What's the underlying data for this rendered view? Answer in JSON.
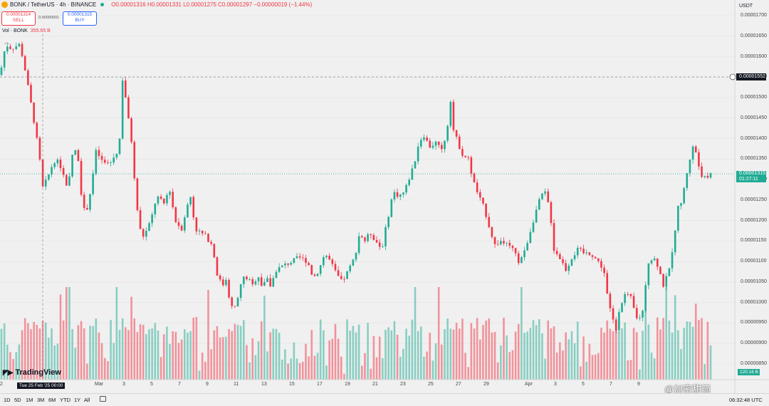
{
  "header": {
    "symbol": "BONK / TetherUS · 4h · BINANCE",
    "ohlc": "O0.00001316 H0.00001331 L0.00001275 C0.00001297 −0.00000019 (−1.44%)"
  },
  "trade": {
    "sell_price": "0.00001314",
    "sell_label": "SELL",
    "spread": "0.00000001",
    "buy_price": "0.00001315",
    "buy_label": "BUY"
  },
  "volume_legend": {
    "label": "Vol · BONK",
    "value": "355.65 B"
  },
  "axis": {
    "currency": "USDT",
    "price_line_value": "0.00001552",
    "current_price": "0.00001315",
    "countdown": "01:27:11",
    "volume_tag": "120.16 B",
    "cursor_label": "Tue 25 Feb '25   00:00"
  },
  "bottom": {
    "ranges": [
      "1D",
      "5D",
      "1M",
      "3M",
      "6M",
      "YTD",
      "1Y",
      "All"
    ],
    "clock": "06:32:48 UTC"
  },
  "branding": {
    "logo_text": "TradingView",
    "watermark": "@加密甜筒"
  },
  "colors": {
    "up": "#22ab94",
    "down": "#f23645",
    "background": "#f0f0f0"
  },
  "chart_data": {
    "type": "candlestick",
    "timeframe": "4h",
    "y_ticks": [
      "0.00001700",
      "0.00001650",
      "0.00001600",
      "0.00001550",
      "0.00001500",
      "0.00001450",
      "0.00001400",
      "0.00001350",
      "0.00001300",
      "0.00001250",
      "0.00001200",
      "0.00001150",
      "0.00001100",
      "0.00001050",
      "0.00001000",
      "0.00000950",
      "0.00000900",
      "0.00000850"
    ],
    "x_ticks": [
      "2",
      "Mar",
      "3",
      "5",
      "7",
      "9",
      "11",
      "13",
      "15",
      "17",
      "19",
      "21",
      "23",
      "25",
      "27",
      "29",
      "Apr",
      "3",
      "5",
      "7",
      "9"
    ],
    "ylim": [
      8.4e-06,
      1.72e-05
    ],
    "price_path": [
      [
        0,
        1.555e-05
      ],
      [
        8,
        1.63e-05
      ],
      [
        16,
        1.62e-05
      ],
      [
        28,
        1.63e-05
      ],
      [
        34,
        1.58e-05
      ],
      [
        40,
        1.52e-05
      ],
      [
        48,
        1.44e-05
      ],
      [
        55,
        1.36e-05
      ],
      [
        60,
        1.28e-05
      ],
      [
        66,
        1.3e-05
      ],
      [
        72,
        1.33e-05
      ],
      [
        78,
        1.35e-05
      ],
      [
        86,
        1.33e-05
      ],
      [
        95,
        1.27e-05
      ],
      [
        103,
        1.38e-05
      ],
      [
        110,
        1.35e-05
      ],
      [
        116,
        1.23e-05
      ],
      [
        121,
        1.22e-05
      ],
      [
        128,
        1.28e-05
      ],
      [
        135,
        1.37e-05
      ],
      [
        145,
        1.34e-05
      ],
      [
        155,
        1.34e-05
      ],
      [
        165,
        1.37e-05
      ],
      [
        168,
        1.4e-05
      ],
      [
        171,
        1.555e-05
      ],
      [
        175,
        1.52e-05
      ],
      [
        180,
        1.45e-05
      ],
      [
        185,
        1.39e-05
      ],
      [
        190,
        1.27e-05
      ],
      [
        196,
        1.18e-05
      ],
      [
        202,
        1.16e-05
      ],
      [
        212,
        1.2e-05
      ],
      [
        220,
        1.26e-05
      ],
      [
        230,
        1.24e-05
      ],
      [
        238,
        1.28e-05
      ],
      [
        246,
        1.2e-05
      ],
      [
        255,
        1.18e-05
      ],
      [
        262,
        1.23e-05
      ],
      [
        268,
        1.26e-05
      ],
      [
        274,
        1.18e-05
      ],
      [
        282,
        1.17e-05
      ],
      [
        290,
        1.16e-05
      ],
      [
        298,
        1.14e-05
      ],
      [
        305,
        1.07e-05
      ],
      [
        312,
        1.04e-05
      ],
      [
        318,
        1.06e-05
      ],
      [
        323,
        1e-05
      ],
      [
        328,
        9.8e-06
      ],
      [
        333,
        1e-05
      ],
      [
        340,
        1.06e-05
      ],
      [
        348,
        1.06e-05
      ],
      [
        355,
        1.04e-05
      ],
      [
        362,
        1.07e-05
      ],
      [
        368,
        1.04e-05
      ],
      [
        374,
        1.06e-05
      ],
      [
        380,
        1.04e-05
      ],
      [
        388,
        1.08e-05
      ],
      [
        398,
        1.09e-05
      ],
      [
        410,
        1.1e-05
      ],
      [
        420,
        1.11e-05
      ],
      [
        432,
        1.1e-05
      ],
      [
        440,
        1.06e-05
      ],
      [
        448,
        1.08e-05
      ],
      [
        456,
        1.12e-05
      ],
      [
        464,
        1.1e-05
      ],
      [
        472,
        1.07e-05
      ],
      [
        480,
        1.05e-05
      ],
      [
        490,
        1.08e-05
      ],
      [
        498,
        1.11e-05
      ],
      [
        505,
        1.17e-05
      ],
      [
        512,
        1.15e-05
      ],
      [
        520,
        1.17e-05
      ],
      [
        528,
        1.15e-05
      ],
      [
        536,
        1.13e-05
      ],
      [
        544,
        1.2e-05
      ],
      [
        552,
        1.27e-05
      ],
      [
        560,
        1.26e-05
      ],
      [
        568,
        1.27e-05
      ],
      [
        576,
        1.31e-05
      ],
      [
        582,
        1.34e-05
      ],
      [
        588,
        1.39e-05
      ],
      [
        595,
        1.41e-05
      ],
      [
        603,
        1.38e-05
      ],
      [
        612,
        1.39e-05
      ],
      [
        620,
        1.37e-05
      ],
      [
        628,
        1.42e-05
      ],
      [
        632,
        1.51e-05
      ],
      [
        637,
        1.42e-05
      ],
      [
        643,
        1.39e-05
      ],
      [
        650,
        1.36e-05
      ],
      [
        658,
        1.35e-05
      ],
      [
        664,
        1.3e-05
      ],
      [
        672,
        1.26e-05
      ],
      [
        680,
        1.23e-05
      ],
      [
        688,
        1.18e-05
      ],
      [
        695,
        1.14e-05
      ],
      [
        703,
        1.15e-05
      ],
      [
        712,
        1.14e-05
      ],
      [
        720,
        1.13e-05
      ],
      [
        728,
        1.1e-05
      ],
      [
        736,
        1.12e-05
      ],
      [
        744,
        1.17e-05
      ],
      [
        752,
        1.22e-05
      ],
      [
        760,
        1.26e-05
      ],
      [
        765,
        1.27e-05
      ],
      [
        772,
        1.23e-05
      ],
      [
        778,
        1.13e-05
      ],
      [
        786,
        1.11e-05
      ],
      [
        795,
        1.08e-05
      ],
      [
        803,
        1.11e-05
      ],
      [
        812,
        1.13e-05
      ],
      [
        820,
        1.12e-05
      ],
      [
        830,
        1.12e-05
      ],
      [
        840,
        1.1e-05
      ],
      [
        848,
        1.08e-05
      ],
      [
        855,
        9.9e-06
      ],
      [
        860,
        9.7e-06
      ],
      [
        864,
        9.2e-06
      ],
      [
        870,
        9.9e-06
      ],
      [
        878,
        1.02e-05
      ],
      [
        886,
        1.01e-05
      ],
      [
        894,
        9.6e-06
      ],
      [
        902,
        9.7e-06
      ],
      [
        910,
        1.1e-05
      ],
      [
        918,
        1.11e-05
      ],
      [
        924,
        1.09e-05
      ],
      [
        932,
        1.04e-05
      ],
      [
        940,
        1.08e-05
      ],
      [
        946,
        1.15e-05
      ],
      [
        952,
        1.23e-05
      ],
      [
        958,
        1.25e-05
      ],
      [
        965,
        1.32e-05
      ],
      [
        970,
        1.36e-05
      ],
      [
        975,
        1.39e-05
      ],
      [
        980,
        1.34e-05
      ],
      [
        986,
        1.31e-05
      ],
      [
        992,
        1.3e-05
      ],
      [
        998,
        1.315e-05
      ]
    ]
  }
}
